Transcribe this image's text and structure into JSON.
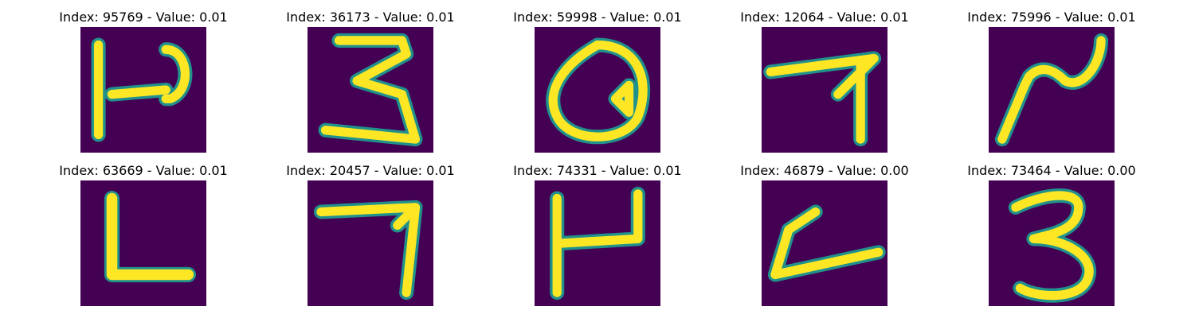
{
  "colors": {
    "background": "#440154",
    "stroke_core": "#fde725",
    "stroke_halo": "#21918c"
  },
  "panels": [
    {
      "title": "Index: 95769 - Value: 0.01",
      "index": 95769,
      "value": 0.01,
      "glyph": "stroke-95769"
    },
    {
      "title": "Index: 36173 - Value: 0.01",
      "index": 36173,
      "value": 0.01,
      "glyph": "stroke-36173"
    },
    {
      "title": "Index: 59998 - Value: 0.01",
      "index": 59998,
      "value": 0.01,
      "glyph": "stroke-59998"
    },
    {
      "title": "Index: 12064 - Value: 0.01",
      "index": 12064,
      "value": 0.01,
      "glyph": "stroke-12064"
    },
    {
      "title": "Index: 75996 - Value: 0.01",
      "index": 75996,
      "value": 0.01,
      "glyph": "stroke-75996"
    },
    {
      "title": "Index: 63669 - Value: 0.01",
      "index": 63669,
      "value": 0.01,
      "glyph": "stroke-63669"
    },
    {
      "title": "Index: 20457 - Value: 0.01",
      "index": 20457,
      "value": 0.01,
      "glyph": "stroke-20457"
    },
    {
      "title": "Index: 74331 - Value: 0.01",
      "index": 74331,
      "value": 0.01,
      "glyph": "stroke-74331"
    },
    {
      "title": "Index: 46879 - Value: 0.00",
      "index": 46879,
      "value": 0.0,
      "glyph": "stroke-46879"
    },
    {
      "title": "Index: 73464 - Value: 0.00",
      "index": 73464,
      "value": 0.0,
      "glyph": "stroke-73464"
    }
  ]
}
